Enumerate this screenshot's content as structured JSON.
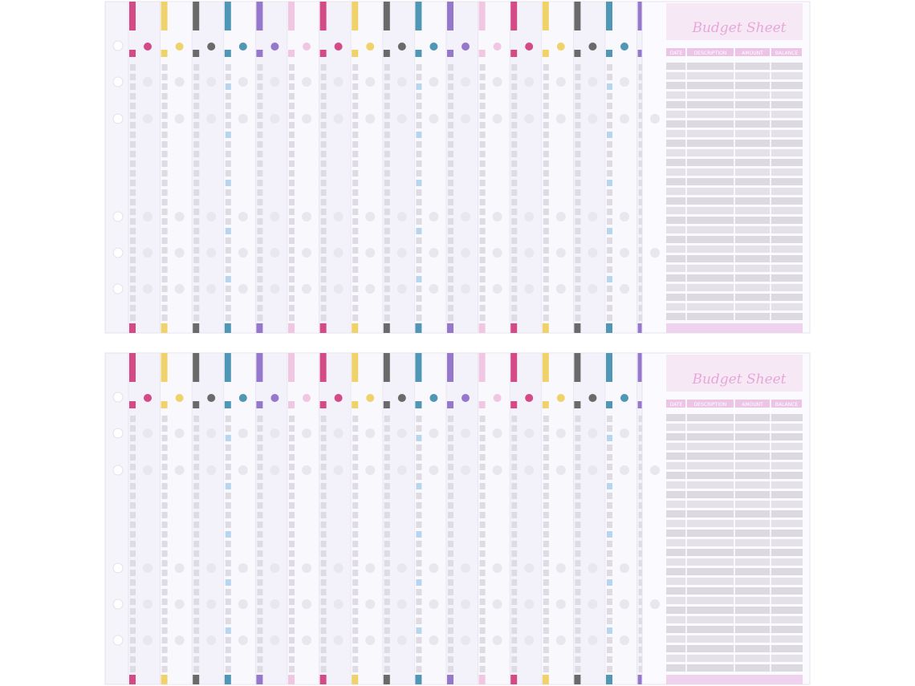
{
  "stacks": [
    {
      "title": "Budget Sheet",
      "headers": [
        "DATE",
        "DESCRIPTION",
        "AMOUNT",
        "BALANCE"
      ]
    },
    {
      "title": "Budget Sheet",
      "headers": [
        "DATE",
        "DESCRIPTION",
        "AMOUNT",
        "BALANCE"
      ]
    }
  ]
}
